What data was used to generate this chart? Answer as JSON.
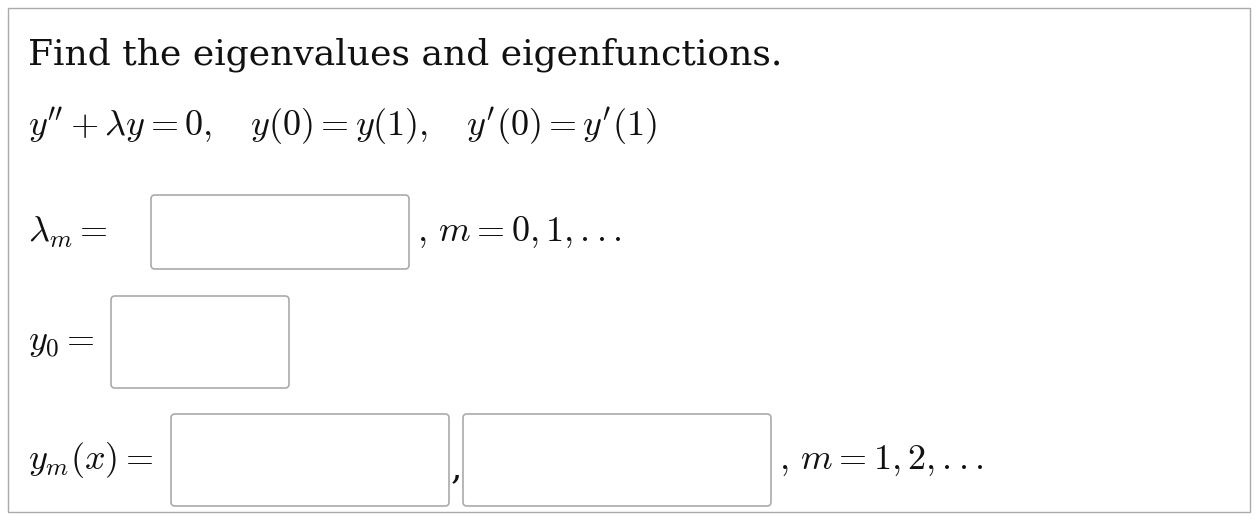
{
  "background_color": "#ffffff",
  "text_color": "#111111",
  "title_text": "Find the eigenvalues and eigenfunctions.",
  "lambda_label": "$\\lambda_m =$",
  "lambda_suffix": "$,\\, m = 0, 1, ...$",
  "y0_label": "$y_0 =$",
  "ym_label": "$y_m(x) =$",
  "ym_suffix": "$,\\, m = 1, 2, ...$",
  "eq_line1": "$y'' + \\lambda y = 0, \\quad y(0) = y(1), \\quad y'(0) = y'(1)$",
  "title_fontsize": 26,
  "eq_fontsize": 26,
  "label_fontsize": 26,
  "fig_width": 12.58,
  "fig_height": 5.2,
  "fig_dpi": 100,
  "box_edge_color": "#aaaaaa",
  "outer_border_color": "#aaaaaa"
}
